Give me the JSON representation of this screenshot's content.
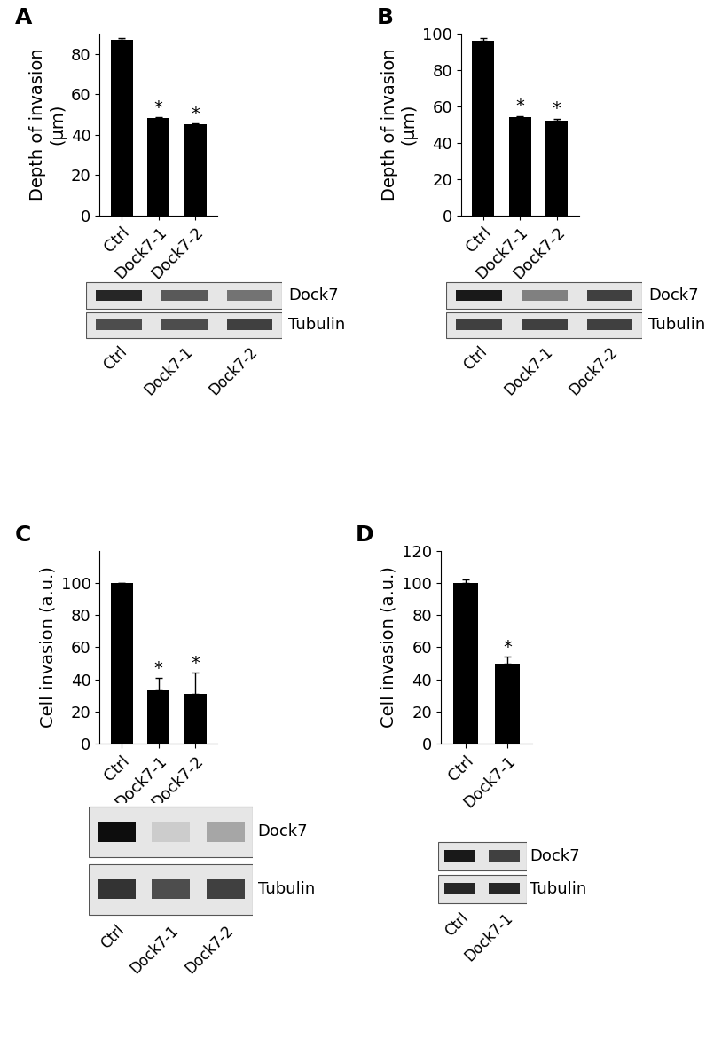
{
  "chart_data": [
    {
      "type": "bar",
      "title": "A",
      "y_label": "Depth of invasion\n(μm)",
      "categories": [
        "Ctrl",
        "Dock7-1",
        "Dock7-2"
      ],
      "values": [
        87,
        48,
        45
      ],
      "errors": [
        1,
        0.5,
        0.5
      ],
      "color": "#000000",
      "ylim": [
        0,
        90
      ],
      "yticks": [
        0,
        20,
        40,
        60,
        80
      ],
      "annotations": [
        {
          "category": "Dock7-1",
          "text": "*"
        },
        {
          "category": "Dock7-2",
          "text": "*"
        }
      ]
    },
    {
      "type": "bar",
      "title": "B",
      "y_label": "Depth of invasion\n(μm)",
      "categories": [
        "Ctrl",
        "Dock7-1",
        "Dock7-2"
      ],
      "values": [
        96,
        54,
        52
      ],
      "errors": [
        1.5,
        0.7,
        1.2
      ],
      "color": "#000000",
      "ylim": [
        0,
        100
      ],
      "yticks": [
        0,
        20,
        40,
        60,
        80,
        100
      ],
      "annotations": [
        {
          "category": "Dock7-1",
          "text": "*"
        },
        {
          "category": "Dock7-2",
          "text": "*"
        }
      ]
    },
    {
      "type": "bar",
      "title": "C",
      "y_label": "Cell invasion (a.u.)",
      "categories": [
        "Ctrl",
        "Dock7-1",
        "Dock7-2"
      ],
      "values": [
        100,
        33,
        31
      ],
      "errors": [
        0,
        8,
        13
      ],
      "color": "#000000",
      "ylim": [
        0,
        120
      ],
      "yticks": [
        0,
        20,
        40,
        60,
        80,
        100
      ],
      "annotations": [
        {
          "category": "Dock7-1",
          "text": "*"
        },
        {
          "category": "Dock7-2",
          "text": "*"
        }
      ]
    },
    {
      "type": "bar",
      "title": "D",
      "y_label": "Cell invasion (a.u.)",
      "categories": [
        "Ctrl",
        "Dock7-1"
      ],
      "values": [
        100,
        50
      ],
      "errors": [
        2,
        4
      ],
      "color": "#000000",
      "ylim": [
        0,
        120
      ],
      "yticks": [
        0,
        20,
        40,
        60,
        80,
        100,
        120
      ],
      "annotations": [
        {
          "category": "Dock7-1",
          "text": "*"
        }
      ]
    }
  ],
  "blots": [
    {
      "categories": [
        "Ctrl",
        "Dock7-1",
        "Dock7-2"
      ],
      "rows": [
        {
          "label": "Dock7",
          "band_intensity": [
            0.85,
            0.65,
            0.55
          ]
        },
        {
          "label": "Tubulin",
          "band_intensity": [
            0.7,
            0.7,
            0.75
          ]
        }
      ]
    },
    {
      "categories": [
        "Ctrl",
        "Dock7-1",
        "Dock7-2"
      ],
      "rows": [
        {
          "label": "Dock7",
          "band_intensity": [
            0.9,
            0.5,
            0.75
          ]
        },
        {
          "label": "Tubulin",
          "band_intensity": [
            0.75,
            0.75,
            0.75
          ]
        }
      ]
    },
    {
      "categories": [
        "Ctrl",
        "Dock7-1",
        "Dock7-2"
      ],
      "rows": [
        {
          "label": "Dock7",
          "band_intensity": [
            0.95,
            0.2,
            0.35
          ]
        },
        {
          "label": "Tubulin",
          "band_intensity": [
            0.8,
            0.7,
            0.75
          ]
        }
      ]
    },
    {
      "categories": [
        "Ctrl",
        "Dock7-1"
      ],
      "rows": [
        {
          "label": "Dock7",
          "band_intensity": [
            0.9,
            0.75
          ]
        },
        {
          "label": "Tubulin",
          "band_intensity": [
            0.85,
            0.85
          ]
        }
      ]
    }
  ]
}
